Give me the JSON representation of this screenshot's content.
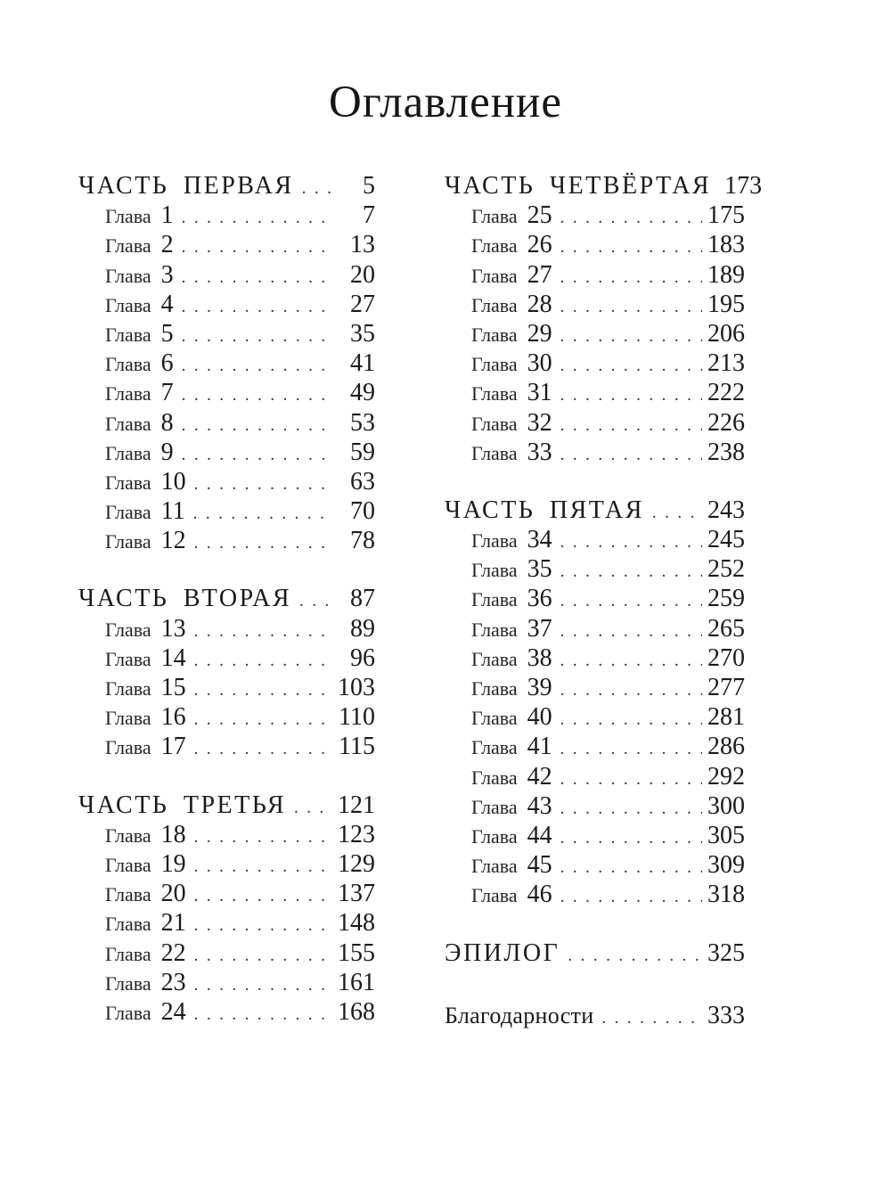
{
  "title": "Оглавление",
  "chapter_label": "Глава",
  "colors": {
    "ink": "#1c1c1c",
    "paper": "#ffffff"
  },
  "columns": [
    {
      "sections": [
        {
          "heading": "ЧАСТЬ ПЕРВАЯ",
          "page": "5",
          "variant": "caps",
          "chapters": [
            {
              "num": "1",
              "page": "7"
            },
            {
              "num": "2",
              "page": "13"
            },
            {
              "num": "3",
              "page": "20"
            },
            {
              "num": "4",
              "page": "27"
            },
            {
              "num": "5",
              "page": "35"
            },
            {
              "num": "6",
              "page": "41"
            },
            {
              "num": "7",
              "page": "49"
            },
            {
              "num": "8",
              "page": "53"
            },
            {
              "num": "9",
              "page": "59"
            },
            {
              "num": "10",
              "page": "63"
            },
            {
              "num": "11",
              "page": "70"
            },
            {
              "num": "12",
              "page": "78"
            }
          ]
        },
        {
          "heading": "ЧАСТЬ ВТОРАЯ",
          "page": "87",
          "variant": "caps",
          "chapters": [
            {
              "num": "13",
              "page": "89"
            },
            {
              "num": "14",
              "page": "96"
            },
            {
              "num": "15",
              "page": "103"
            },
            {
              "num": "16",
              "page": "110"
            },
            {
              "num": "17",
              "page": "115"
            }
          ]
        },
        {
          "heading": "ЧАСТЬ ТРЕТЬЯ",
          "page": "121",
          "variant": "caps",
          "chapters": [
            {
              "num": "18",
              "page": "123"
            },
            {
              "num": "19",
              "page": "129"
            },
            {
              "num": "20",
              "page": "137"
            },
            {
              "num": "21",
              "page": "148"
            },
            {
              "num": "22",
              "page": "155"
            },
            {
              "num": "23",
              "page": "161"
            },
            {
              "num": "24",
              "page": "168"
            }
          ]
        }
      ]
    },
    {
      "sections": [
        {
          "heading": "ЧАСТЬ ЧЕТВЁРТАЯ",
          "page": "173",
          "variant": "caps",
          "chapters": [
            {
              "num": "25",
              "page": "175"
            },
            {
              "num": "26",
              "page": "183"
            },
            {
              "num": "27",
              "page": "189"
            },
            {
              "num": "28",
              "page": "195"
            },
            {
              "num": "29",
              "page": "206"
            },
            {
              "num": "30",
              "page": "213"
            },
            {
              "num": "31",
              "page": "222"
            },
            {
              "num": "32",
              "page": "226"
            },
            {
              "num": "33",
              "page": "238"
            }
          ]
        },
        {
          "heading": "ЧАСТЬ ПЯТАЯ",
          "page": "243",
          "variant": "caps",
          "chapters": [
            {
              "num": "34",
              "page": "245"
            },
            {
              "num": "35",
              "page": "252"
            },
            {
              "num": "36",
              "page": "259"
            },
            {
              "num": "37",
              "page": "265"
            },
            {
              "num": "38",
              "page": "270"
            },
            {
              "num": "39",
              "page": "277"
            },
            {
              "num": "40",
              "page": "281"
            },
            {
              "num": "41",
              "page": "286"
            },
            {
              "num": "42",
              "page": "292"
            },
            {
              "num": "43",
              "page": "300"
            },
            {
              "num": "44",
              "page": "305"
            },
            {
              "num": "45",
              "page": "309"
            },
            {
              "num": "46",
              "page": "318"
            }
          ]
        },
        {
          "heading": "ЭПИЛОГ",
          "page": "325",
          "variant": "caps",
          "chapters": []
        },
        {
          "heading": "Благодарности",
          "page": "333",
          "variant": "plain",
          "extra_gap": true,
          "chapters": []
        }
      ]
    }
  ]
}
